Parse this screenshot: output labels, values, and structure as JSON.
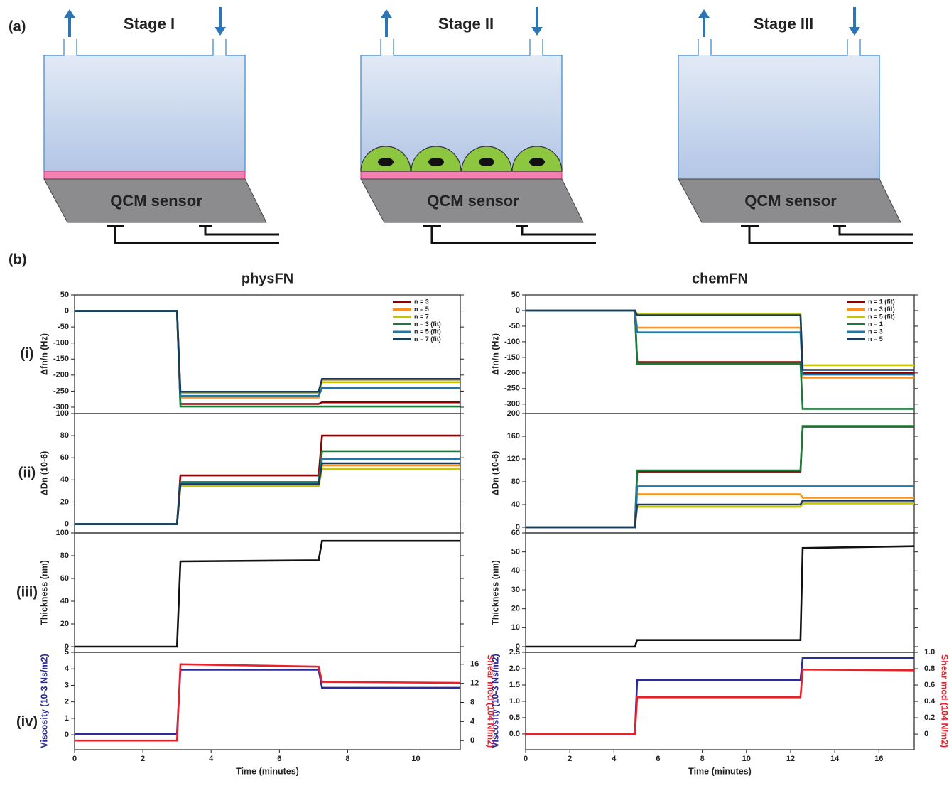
{
  "panel_a": {
    "label": "(a)",
    "stages": [
      {
        "title": "Stage I",
        "sensor": "QCM sensor"
      },
      {
        "title": "Stage II",
        "sensor": "QCM sensor"
      },
      {
        "title": "Stage III",
        "sensor": "QCM sensor"
      }
    ]
  },
  "panel_b": {
    "label": "(b)",
    "row_labels": [
      "(i)",
      "(ii)",
      "(iii)",
      "(iv)"
    ]
  },
  "chart_data": [
    {
      "type": "line",
      "title": "physFN",
      "ylabel": "Δfn/n (Hz)",
      "xlim": [
        0,
        11.3
      ],
      "x": [
        0,
        3.0,
        3.1,
        7.15,
        7.25,
        11.3
      ],
      "ylim": [
        -320,
        50
      ],
      "yticks": [
        50,
        0,
        -50,
        -100,
        -150,
        -200,
        -250,
        -300
      ],
      "legend": "upper right",
      "series": [
        {
          "name": "n = 3",
          "color": "#8b0000",
          "values": [
            0,
            0,
            -290,
            -290,
            -285,
            -285
          ]
        },
        {
          "name": "n = 5",
          "color": "#f7941d",
          "values": [
            0,
            0,
            -270,
            -270,
            -215,
            -215
          ]
        },
        {
          "name": "n = 7",
          "color": "#c9c400",
          "values": [
            0,
            0,
            -255,
            -255,
            -222,
            -222
          ]
        },
        {
          "name": "n = 3 (fit)",
          "color": "#1a7a3a",
          "values": [
            0,
            0,
            -298,
            -298,
            -298,
            -298
          ]
        },
        {
          "name": "n = 5 (fit)",
          "color": "#1f78a8",
          "values": [
            0,
            0,
            -265,
            -265,
            -240,
            -240
          ]
        },
        {
          "name": "n = 7 (fit)",
          "color": "#1b3a5c",
          "values": [
            0,
            0,
            -252,
            -252,
            -212,
            -212
          ]
        }
      ]
    },
    {
      "type": "line",
      "ylabel": "ΔDn (10-6)",
      "xlim": [
        0,
        11.3
      ],
      "x": [
        0,
        3.0,
        3.1,
        7.15,
        7.25,
        11.3
      ],
      "ylim": [
        -8,
        100
      ],
      "yticks": [
        0,
        20,
        40,
        60,
        80,
        100
      ],
      "series": [
        {
          "color": "#8b0000",
          "values": [
            0,
            0,
            44,
            44,
            80,
            80
          ]
        },
        {
          "color": "#f7941d",
          "values": [
            0,
            0,
            35,
            35,
            53,
            53
          ]
        },
        {
          "color": "#c9c400",
          "values": [
            0,
            0,
            34,
            34,
            50,
            50
          ]
        },
        {
          "color": "#1a7a3a",
          "values": [
            0,
            0,
            38,
            38,
            66,
            66
          ]
        },
        {
          "color": "#1f78a8",
          "values": [
            0,
            0,
            37,
            37,
            59,
            59
          ]
        },
        {
          "color": "#1b3a5c",
          "values": [
            0,
            0,
            36,
            36,
            55,
            55
          ]
        }
      ]
    },
    {
      "type": "line",
      "ylabel": "Thickness (nm)",
      "xlim": [
        0,
        11.3
      ],
      "x": [
        0,
        3.0,
        3.1,
        7.15,
        7.25,
        11.3
      ],
      "ylim": [
        -5,
        100
      ],
      "yticks": [
        0,
        20,
        40,
        60,
        80,
        100
      ],
      "series": [
        {
          "color": "#111111",
          "values": [
            0,
            0,
            75,
            76,
            93,
            93
          ]
        }
      ]
    },
    {
      "type": "line",
      "ylabel": "Viscosity (10-3 Ns/m2)",
      "y2label": "Shear mod (104 N/m2)",
      "xlabel": "Time (minutes)",
      "xlim": [
        0,
        11.3
      ],
      "xticks": [
        0,
        2,
        4,
        6,
        8,
        10
      ],
      "x": [
        0,
        3.0,
        3.1,
        7.15,
        7.25,
        11.3
      ],
      "ylim": [
        -0.9,
        5
      ],
      "yticks": [
        0,
        1,
        2,
        3,
        4,
        5
      ],
      "y2lim": [
        -1.9,
        18.5
      ],
      "y2ticks": [
        0,
        4,
        8,
        12,
        16
      ],
      "series": [
        {
          "color": "#2b2b9c",
          "values": [
            0.05,
            0.05,
            3.95,
            3.95,
            2.85,
            2.85
          ]
        },
        {
          "color": "#e8202a",
          "axis": "y2",
          "values": [
            0,
            0,
            16,
            15.5,
            12.3,
            12.1
          ]
        }
      ]
    },
    {
      "type": "line",
      "title": "chemFN",
      "ylabel": "Δfn/n (Hz)",
      "xlim": [
        0,
        17.6
      ],
      "x": [
        0,
        4.95,
        5.05,
        12.45,
        12.55,
        17.6
      ],
      "ylim": [
        -330,
        50
      ],
      "yticks": [
        50,
        0,
        -50,
        -100,
        -150,
        -200,
        -250,
        -300
      ],
      "legend": "upper right",
      "series": [
        {
          "name": "n = 1 (fit)",
          "color": "#8b0000",
          "values": [
            0,
            0,
            -165,
            -165,
            -200,
            -200
          ]
        },
        {
          "name": "n = 3 (fit)",
          "color": "#f7941d",
          "values": [
            0,
            0,
            -55,
            -55,
            -215,
            -215
          ]
        },
        {
          "name": "n = 5 (fit)",
          "color": "#c9c400",
          "values": [
            0,
            0,
            -10,
            -10,
            -175,
            -175
          ]
        },
        {
          "name": "n = 1",
          "color": "#1a7a3a",
          "values": [
            0,
            0,
            -170,
            -170,
            -315,
            -315
          ]
        },
        {
          "name": "n = 3",
          "color": "#1f78a8",
          "values": [
            0,
            0,
            -70,
            -70,
            -205,
            -205
          ]
        },
        {
          "name": "n = 5",
          "color": "#1b3a5c",
          "values": [
            0,
            0,
            -15,
            -15,
            -190,
            -190
          ]
        }
      ]
    },
    {
      "type": "line",
      "ylabel": "ΔDn (10-6)",
      "xlim": [
        0,
        17.6
      ],
      "x": [
        0,
        4.95,
        5.05,
        12.45,
        12.55,
        17.6
      ],
      "ylim": [
        -10,
        200
      ],
      "yticks": [
        0,
        40,
        80,
        120,
        160,
        200
      ],
      "series": [
        {
          "color": "#8b0000",
          "values": [
            0,
            0,
            98,
            98,
            177,
            177
          ]
        },
        {
          "color": "#f7941d",
          "values": [
            0,
            0,
            58,
            58,
            52,
            52
          ]
        },
        {
          "color": "#c9c400",
          "values": [
            0,
            0,
            36,
            36,
            42,
            42
          ]
        },
        {
          "color": "#1a7a3a",
          "values": [
            0,
            0,
            100,
            100,
            178,
            178
          ]
        },
        {
          "color": "#1f78a8",
          "values": [
            0,
            0,
            72,
            72,
            72,
            72
          ]
        },
        {
          "color": "#1b3a5c",
          "values": [
            0,
            0,
            40,
            40,
            47,
            47
          ]
        }
      ]
    },
    {
      "type": "line",
      "ylabel": "Thickness (nm)",
      "xlim": [
        0,
        17.6
      ],
      "x": [
        0,
        4.95,
        5.05,
        12.45,
        12.55,
        17.6
      ],
      "ylim": [
        -3,
        60
      ],
      "yticks": [
        0,
        10,
        20,
        30,
        40,
        50,
        60
      ],
      "series": [
        {
          "color": "#111111",
          "values": [
            0,
            0,
            3.5,
            3.5,
            52,
            53
          ]
        }
      ]
    },
    {
      "type": "line",
      "ylabel": "Viscosity (10-3 Ns/m2)",
      "y2label": "Shear mod (104 N/m2)",
      "xlabel": "Time (minutes)",
      "xlim": [
        0,
        17.6
      ],
      "xticks": [
        0,
        2,
        4,
        6,
        8,
        10,
        12,
        14,
        16
      ],
      "x": [
        0,
        4.95,
        5.05,
        12.45,
        12.55,
        17.6
      ],
      "ylim": [
        -0.48,
        2.5
      ],
      "yticks": [
        {
          "value": 0,
          "label": "0.0"
        },
        0.5,
        {
          "value": 1,
          "label": "1.0"
        },
        1.5,
        {
          "value": 2,
          "label": "2.0"
        },
        2.5
      ],
      "y2lim": [
        -0.19,
        1
      ],
      "y2ticks": [
        0,
        0.2,
        0.4,
        0.6,
        0.8,
        {
          "value": 1,
          "label": "1.0"
        }
      ],
      "series": [
        {
          "color": "#2b2b9c",
          "values": [
            0,
            0,
            1.65,
            1.65,
            2.32,
            2.32
          ]
        },
        {
          "color": "#e8202a",
          "axis": "y2",
          "values": [
            0,
            0,
            0.45,
            0.45,
            0.79,
            0.78
          ]
        }
      ]
    }
  ]
}
